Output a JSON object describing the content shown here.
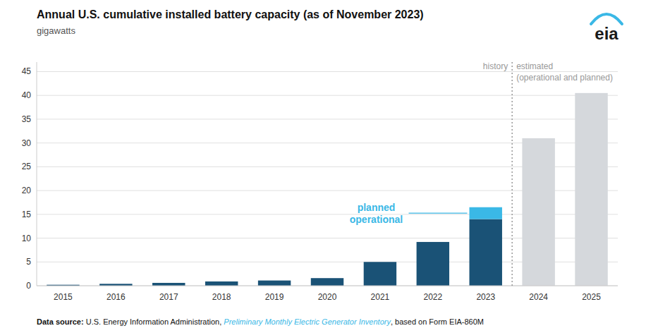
{
  "chart_data": {
    "type": "bar",
    "stacked": true,
    "title": "Annual U.S. cumulative installed battery capacity (as of November 2023)",
    "subtitle": "gigawatts",
    "categories": [
      "2015",
      "2016",
      "2017",
      "2018",
      "2019",
      "2020",
      "2021",
      "2022",
      "2023",
      "2024",
      "2025"
    ],
    "series": [
      {
        "color": "#1a5276",
        "values": [
          0.2,
          0.4,
          0.6,
          0.9,
          1.1,
          1.6,
          5.0,
          9.2,
          14.0,
          0,
          0
        ]
      },
      {
        "color": "#3ab8e6",
        "values": [
          0,
          0,
          0,
          0,
          0,
          0,
          0,
          0,
          2.5,
          0,
          0
        ]
      },
      {
        "color": "#d5d8dc",
        "values": [
          0,
          0,
          0,
          0,
          0,
          0,
          0,
          0,
          0,
          31.0,
          40.5
        ]
      }
    ],
    "ylim": [
      0,
      47
    ],
    "yticks": [
      0,
      5,
      10,
      15,
      20,
      25,
      30,
      35,
      40,
      45
    ],
    "grid": true,
    "annotations": [
      "planned",
      "operational",
      "history",
      "estimated",
      "(operational and planned)"
    ],
    "logo": "eia",
    "footnote": [
      "Data source:",
      " U.S. Energy Information Administration, ",
      "Preliminary Monthly Electric Generator Inventory",
      ", based on Form EIA-860M"
    ]
  }
}
